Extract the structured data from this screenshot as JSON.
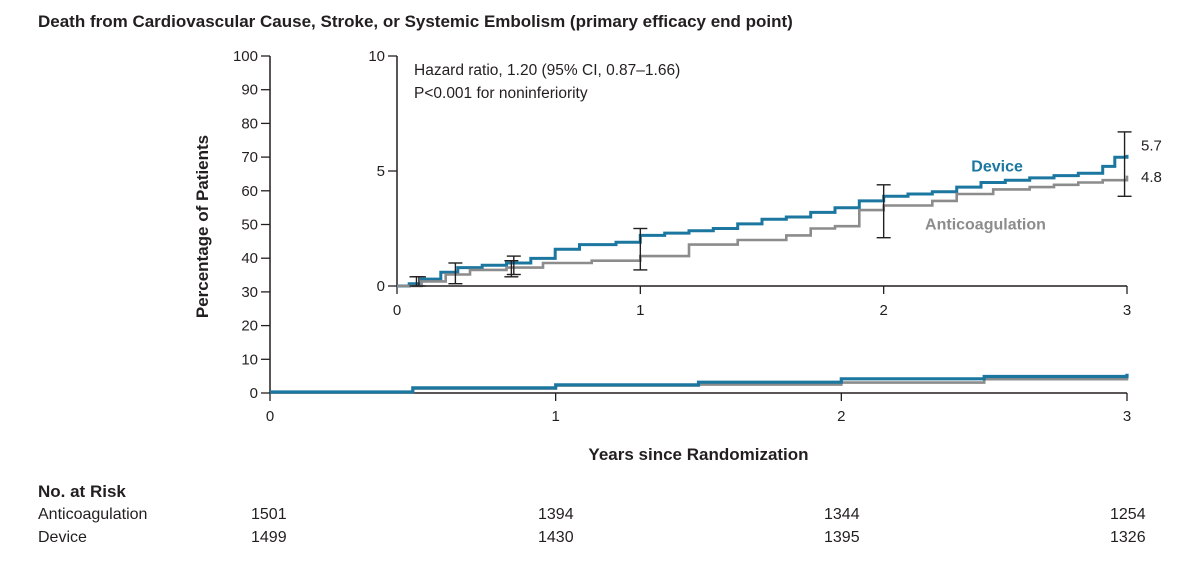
{
  "title": "Death from Cardiovascular Cause, Stroke, or Systemic Embolism (primary efficacy end point)",
  "colors": {
    "device": "#1b77a0",
    "anticoagulation": "#8c8c8c",
    "text": "#231f20"
  },
  "chart_data": [
    {
      "type": "line",
      "panel": "main",
      "xlabel": "Years since Randomization",
      "ylabel": "Percentage of Patients",
      "xlim": [
        0,
        3
      ],
      "ylim": [
        0,
        100
      ],
      "x_ticks": [
        0,
        1,
        2,
        3
      ],
      "y_ticks": [
        0,
        10,
        20,
        30,
        40,
        50,
        60,
        70,
        80,
        90,
        100
      ],
      "series": [
        {
          "key": "anticoagulation",
          "x": [
            0,
            0.5,
            1,
            1.5,
            2,
            2.5,
            3
          ],
          "values": [
            0.3,
            1.3,
            2.2,
            2.5,
            3.1,
            4.1,
            4.8
          ]
        },
        {
          "key": "device",
          "x": [
            0,
            0.5,
            1,
            1.5,
            2,
            2.5,
            3
          ],
          "values": [
            0.3,
            1.5,
            2.4,
            3.2,
            4.2,
            4.9,
            5.7
          ]
        }
      ]
    },
    {
      "type": "line",
      "panel": "inset",
      "xlim": [
        0,
        3
      ],
      "ylim": [
        0,
        10
      ],
      "x_ticks": [
        0,
        1,
        2,
        3
      ],
      "y_ticks": [
        0,
        5,
        10
      ],
      "annotation": [
        "Hazard ratio, 1.20 (95% CI, 0.87–1.66)",
        "P<0.001 for noninferiority"
      ],
      "series": [
        {
          "key": "device",
          "name": "Device",
          "end_label": "5.7",
          "x": [
            0,
            0.05,
            0.1,
            0.18,
            0.25,
            0.35,
            0.45,
            0.55,
            0.65,
            0.75,
            0.9,
            1.0,
            1.1,
            1.2,
            1.3,
            1.4,
            1.5,
            1.6,
            1.7,
            1.8,
            1.9,
            2.0,
            2.1,
            2.2,
            2.3,
            2.4,
            2.5,
            2.6,
            2.7,
            2.8,
            2.9,
            2.95,
            3.0
          ],
          "values": [
            0.0,
            0.1,
            0.3,
            0.6,
            0.8,
            0.9,
            1.0,
            1.2,
            1.6,
            1.8,
            1.9,
            2.2,
            2.3,
            2.4,
            2.5,
            2.7,
            2.9,
            3.0,
            3.2,
            3.4,
            3.7,
            3.9,
            4.0,
            4.1,
            4.3,
            4.5,
            4.6,
            4.7,
            4.8,
            4.9,
            5.2,
            5.6,
            5.7
          ]
        },
        {
          "key": "anticoagulation",
          "name": "Anticoagulation",
          "end_label": "4.8",
          "x": [
            0,
            0.1,
            0.2,
            0.3,
            0.45,
            0.6,
            0.8,
            1.0,
            1.2,
            1.4,
            1.6,
            1.7,
            1.8,
            1.9,
            2.0,
            2.2,
            2.3,
            2.45,
            2.6,
            2.7,
            2.8,
            2.9,
            3.0
          ],
          "values": [
            0.0,
            0.2,
            0.5,
            0.7,
            0.8,
            1.0,
            1.1,
            1.3,
            1.8,
            2.0,
            2.2,
            2.5,
            2.6,
            3.3,
            3.5,
            3.7,
            4.0,
            4.2,
            4.3,
            4.4,
            4.5,
            4.6,
            4.8
          ]
        }
      ],
      "error_bars": [
        {
          "x": 0.08,
          "low": 0.0,
          "high": 0.4
        },
        {
          "x": 0.09,
          "low": 0.0,
          "high": 0.4
        },
        {
          "x": 0.24,
          "low": 0.1,
          "high": 1.0
        },
        {
          "x": 0.47,
          "low": 0.4,
          "high": 1.1
        },
        {
          "x": 0.48,
          "low": 0.5,
          "high": 1.3
        },
        {
          "x": 1.0,
          "low": 0.7,
          "high": 2.5
        },
        {
          "x": 2.0,
          "low": 2.1,
          "high": 4.4
        },
        {
          "x": 2.99,
          "low": 3.9,
          "high": 6.7
        }
      ]
    }
  ],
  "risk_table": {
    "title": "No. at Risk",
    "rows": [
      {
        "label": "Anticoagulation",
        "values": [
          "1501",
          "1394",
          "1344",
          "1254"
        ]
      },
      {
        "label": "Device",
        "values": [
          "1499",
          "1430",
          "1395",
          "1326"
        ]
      }
    ]
  }
}
